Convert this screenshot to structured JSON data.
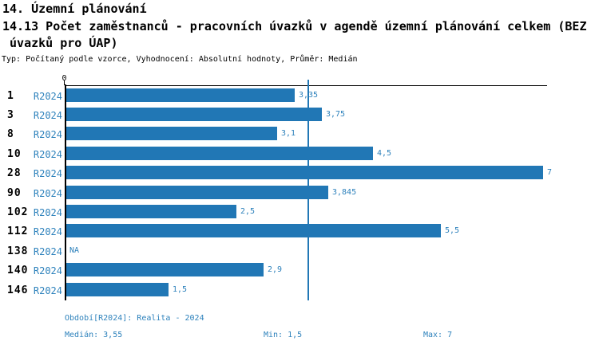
{
  "header": {
    "line1": "14. Územní plánování",
    "line2": "14.13 Počet zaměstnanců - pracovních úvazků v agendě územní plánování celkem (BEZ",
    "line3": " úvazků pro ÚAP)",
    "meta": "Typ: Počítaný podle vzorce, Vyhodnocení: Absolutní hodnoty, Průměr: Medián"
  },
  "chart_data": {
    "type": "bar",
    "orientation": "horizontal",
    "x_axis": {
      "zero_label": "0",
      "xlim": [
        0,
        7.05
      ],
      "gridlines": false
    },
    "median_value": 3.55,
    "legend": "none",
    "period_label": "R2024",
    "rows": [
      {
        "category": "1",
        "period": "R2024",
        "value": 3.35,
        "label": "3,35"
      },
      {
        "category": "3",
        "period": "R2024",
        "value": 3.75,
        "label": "3,75"
      },
      {
        "category": "8",
        "period": "R2024",
        "value": 3.1,
        "label": "3,1"
      },
      {
        "category": "10",
        "period": "R2024",
        "value": 4.5,
        "label": "4,5"
      },
      {
        "category": "28",
        "period": "R2024",
        "value": 7,
        "label": "7"
      },
      {
        "category": "90",
        "period": "R2024",
        "value": 3.845,
        "label": "3,845"
      },
      {
        "category": "102",
        "period": "R2024",
        "value": 2.5,
        "label": "2,5"
      },
      {
        "category": "112",
        "period": "R2024",
        "value": 5.5,
        "label": "5,5"
      },
      {
        "category": "138",
        "period": "R2024",
        "value": null,
        "label": "NA"
      },
      {
        "category": "140",
        "period": "R2024",
        "value": 2.9,
        "label": "2,9"
      },
      {
        "category": "146",
        "period": "R2024",
        "value": 1.5,
        "label": "1,5"
      }
    ]
  },
  "footer": {
    "period_info": "Období[R2024]: Realita - 2024",
    "median": "Medián: 3,55",
    "min": "Min: 1,5",
    "max": "Max: 7"
  },
  "colors": {
    "bar": "#2177b5",
    "median_line": "#2177b5",
    "label_text": "#2e82bc",
    "axis": "#000000",
    "background": "#ffffff"
  }
}
